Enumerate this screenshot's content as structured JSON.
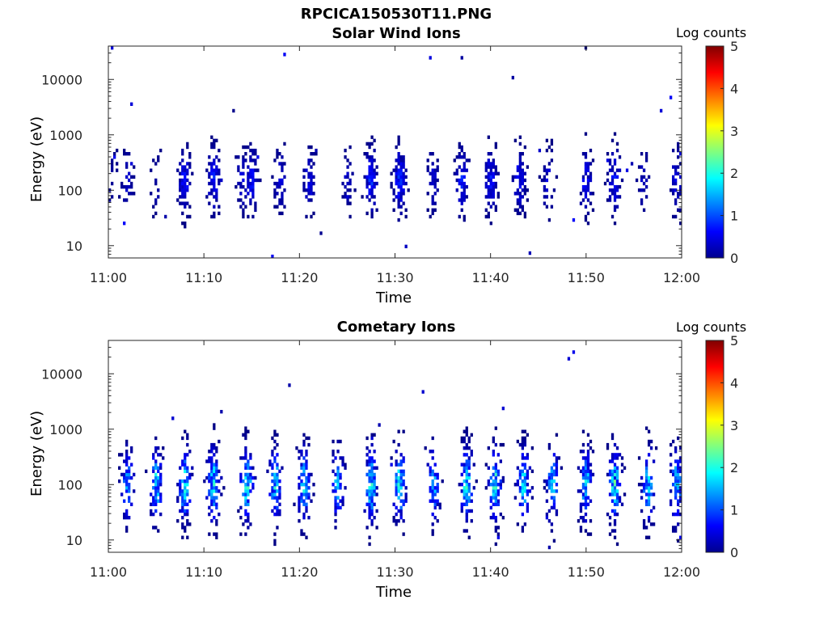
{
  "figure": {
    "title": "RPCICA150530T11.PNG"
  },
  "chart_data": [
    {
      "type": "heatmap",
      "title": "Solar Wind Ions",
      "xlabel": "Time",
      "ylabel": "Energy (eV)",
      "x_ticks": [
        "11:00",
        "11:10",
        "11:20",
        "11:30",
        "11:40",
        "11:50",
        "12:00"
      ],
      "y_ticks": [
        "10",
        "100",
        "1000",
        "10000"
      ],
      "y_scale": "log",
      "ylim": [
        6,
        40000
      ],
      "xlim": [
        "11:00",
        "12:00"
      ],
      "colorbar": {
        "label": "Log counts",
        "ticks": [
          "0",
          "1",
          "2",
          "3",
          "4",
          "5"
        ],
        "range": [
          0,
          5
        ],
        "colormap": "jet"
      },
      "activity": {
        "minutes": [
          0.5,
          2,
          5,
          8,
          11,
          14,
          15,
          18,
          21,
          25,
          27.5,
          30.5,
          34,
          37,
          40,
          43,
          46,
          50,
          53,
          56,
          59.5
        ],
        "strength": [
          0.2,
          0.4,
          0.3,
          0.8,
          0.8,
          0.5,
          0.8,
          0.5,
          0.6,
          0.4,
          0.9,
          0.9,
          0.5,
          0.8,
          0.8,
          0.7,
          0.5,
          0.7,
          0.8,
          0.4,
          0.6
        ],
        "intensity": 0.9,
        "peak_energy_eV": 150,
        "log_spread": 0.45
      }
    },
    {
      "type": "heatmap",
      "title": "Cometary Ions",
      "xlabel": "Time",
      "ylabel": "Energy (eV)",
      "x_ticks": [
        "11:00",
        "11:10",
        "11:20",
        "11:30",
        "11:40",
        "11:50",
        "12:00"
      ],
      "y_ticks": [
        "10",
        "100",
        "1000",
        "10000"
      ],
      "y_scale": "log",
      "ylim": [
        6,
        40000
      ],
      "xlim": [
        "11:00",
        "12:00"
      ],
      "colorbar": {
        "label": "Log counts",
        "ticks": [
          "0",
          "1",
          "2",
          "3",
          "4",
          "5"
        ],
        "range": [
          0,
          5
        ],
        "colormap": "jet"
      },
      "activity": {
        "minutes": [
          2,
          5,
          8,
          11,
          14.5,
          17.5,
          20.5,
          24,
          27.5,
          30.5,
          34,
          37.5,
          40.5,
          43.5,
          46.5,
          50,
          53,
          56.5,
          59.5
        ],
        "strength": [
          0.6,
          0.8,
          0.9,
          0.9,
          0.9,
          0.8,
          0.8,
          0.7,
          0.9,
          0.9,
          0.7,
          0.9,
          0.9,
          0.8,
          0.7,
          0.8,
          0.9,
          0.8,
          0.8
        ],
        "intensity": 2.2,
        "peak_energy_eV": 100,
        "log_spread": 0.5
      }
    }
  ]
}
